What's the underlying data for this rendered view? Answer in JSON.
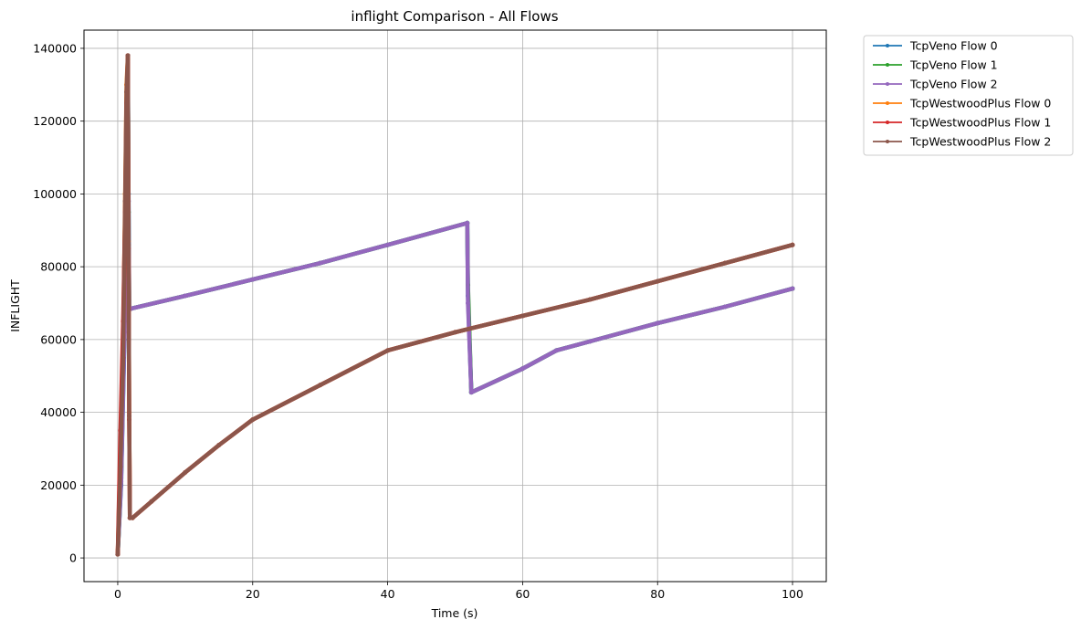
{
  "chart_data": {
    "type": "line",
    "title": "inflight Comparison - All Flows",
    "xlabel": "Time (s)",
    "ylabel": "INFLIGHT",
    "xlim": [
      -5,
      105
    ],
    "ylim": [
      -6500,
      145000
    ],
    "xticks": [
      0,
      20,
      40,
      60,
      80,
      100
    ],
    "yticks": [
      0,
      20000,
      40000,
      60000,
      80000,
      100000,
      120000,
      140000
    ],
    "grid": true,
    "legend_position": "outside-top-right",
    "series": [
      {
        "name": "TcpVeno Flow 0",
        "color": "#1f77b4",
        "x": [
          0,
          0.5,
          1.0,
          1.3,
          1.5,
          1.6,
          1.7,
          1.8,
          2,
          10,
          20,
          30,
          40,
          51.8,
          51.9,
          52.4,
          60,
          65,
          70,
          80,
          90,
          100
        ],
        "y": [
          1000,
          20000,
          60000,
          120000,
          138000,
          100000,
          69000,
          68500,
          68500,
          72000,
          76500,
          81000,
          86000,
          92000,
          72000,
          45500,
          52000,
          57000,
          59500,
          64500,
          69000,
          74000
        ]
      },
      {
        "name": "TcpVeno Flow 1",
        "color": "#2ca02c",
        "x": [
          0,
          0.5,
          1.0,
          1.3,
          1.5,
          1.6,
          1.7,
          1.8,
          2,
          10,
          20,
          30,
          40,
          51.8,
          51.9,
          52.4,
          60,
          65,
          70,
          80,
          90,
          100
        ],
        "y": [
          1000,
          22000,
          65000,
          125000,
          137000,
          95000,
          69000,
          68500,
          68500,
          72000,
          76500,
          81000,
          86000,
          92000,
          75000,
          45500,
          52000,
          57000,
          59500,
          64500,
          69000,
          74000
        ]
      },
      {
        "name": "TcpVeno Flow 2",
        "color": "#9467bd",
        "x": [
          0,
          0.5,
          1.0,
          1.3,
          1.5,
          1.6,
          1.7,
          1.8,
          2,
          10,
          20,
          30,
          40,
          51.8,
          51.9,
          52.4,
          60,
          65,
          70,
          80,
          90,
          100
        ],
        "y": [
          1000,
          21000,
          62000,
          118000,
          136000,
          98000,
          69000,
          68500,
          68500,
          72000,
          76500,
          81000,
          86000,
          92000,
          70000,
          45500,
          52000,
          57000,
          59500,
          64500,
          69000,
          74000
        ]
      },
      {
        "name": "TcpWestwoodPlus Flow 0",
        "color": "#ff7f0e",
        "x": [
          0,
          0.4,
          0.8,
          1.1,
          1.3,
          1.5,
          1.6,
          1.7,
          1.8,
          2.2,
          5,
          10,
          15,
          20,
          30,
          40,
          50,
          60,
          70,
          80,
          90,
          100
        ],
        "y": [
          1000,
          30000,
          60000,
          100000,
          130000,
          138000,
          87000,
          40000,
          11000,
          11000,
          15500,
          23500,
          31000,
          38000,
          47500,
          57000,
          62000,
          66500,
          71000,
          76000,
          81000,
          86000
        ]
      },
      {
        "name": "TcpWestwoodPlus Flow 1",
        "color": "#d62728",
        "x": [
          0,
          0.4,
          0.8,
          1.1,
          1.3,
          1.5,
          1.6,
          1.7,
          1.8,
          2.2,
          5,
          10,
          15,
          20,
          30,
          40,
          50,
          60,
          70,
          80,
          90,
          100
        ],
        "y": [
          1000,
          35000,
          65000,
          95000,
          125000,
          138000,
          85000,
          38000,
          11000,
          11000,
          15500,
          23500,
          31000,
          38000,
          47500,
          57000,
          62000,
          66500,
          71000,
          76000,
          81000,
          86000
        ]
      },
      {
        "name": "TcpWestwoodPlus Flow 2",
        "color": "#8c564b",
        "x": [
          0,
          0.4,
          0.8,
          1.1,
          1.3,
          1.5,
          1.6,
          1.7,
          1.8,
          2.2,
          5,
          10,
          15,
          20,
          30,
          40,
          50,
          60,
          70,
          80,
          90,
          100
        ],
        "y": [
          1000,
          25000,
          55000,
          98000,
          128000,
          138000,
          86000,
          39000,
          11000,
          11000,
          15500,
          23500,
          31000,
          38000,
          47500,
          57000,
          62000,
          66500,
          71000,
          76000,
          81000,
          86000
        ]
      }
    ]
  }
}
